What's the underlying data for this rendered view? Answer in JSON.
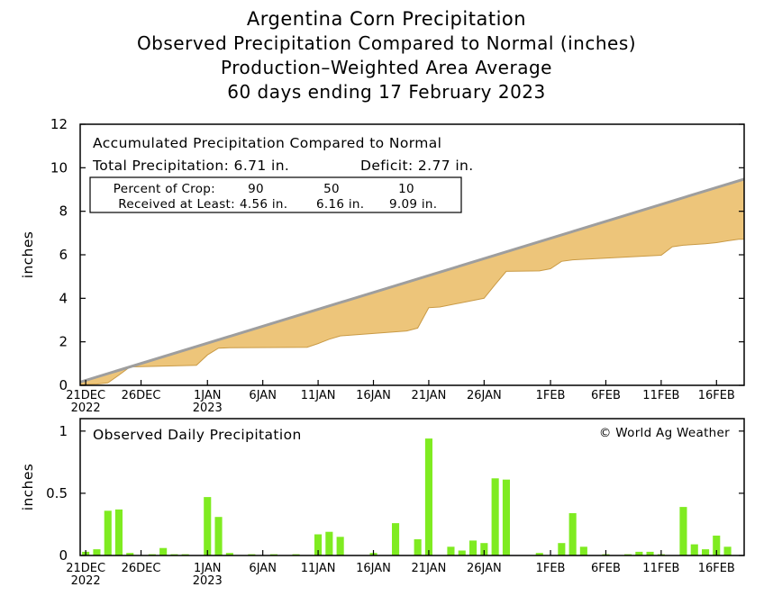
{
  "titles": [
    "Argentina Corn Precipitation",
    "Observed Precipitation Compared to Normal (inches)",
    "Production–Weighted Area Average",
    "60 days ending 17 February 2023"
  ],
  "colors": {
    "deficit_fill": "#EDC57A",
    "normal_line": "#9E9E9E",
    "bars": "#7FEB21"
  },
  "accumulated": {
    "heading": "Accumulated Precipitation Compared to Normal",
    "total_text": "Total Precipitation: 6.71 in.",
    "deficit_text": "Deficit: 2.77 in.",
    "crop_box": {
      "row1": [
        "Percent of Crop:",
        "90",
        "50",
        "10"
      ],
      "row2": [
        "Received at Least:",
        "4.56 in.",
        "6.16 in.",
        "9.09 in."
      ]
    }
  },
  "daily": {
    "heading": "Observed Daily Precipitation",
    "credit": "© World Ag Weather"
  },
  "axes": {
    "ylabel": "inches",
    "x_ticks": [
      {
        "day": 1,
        "label": "21DEC",
        "sub": "2022"
      },
      {
        "day": 6,
        "label": "26DEC",
        "sub": ""
      },
      {
        "day": 12,
        "label": "1JAN",
        "sub": "2023"
      },
      {
        "day": 17,
        "label": "6JAN",
        "sub": ""
      },
      {
        "day": 22,
        "label": "11JAN",
        "sub": ""
      },
      {
        "day": 27,
        "label": "16JAN",
        "sub": ""
      },
      {
        "day": 32,
        "label": "21JAN",
        "sub": ""
      },
      {
        "day": 37,
        "label": "26JAN",
        "sub": ""
      },
      {
        "day": 43,
        "label": "1FEB",
        "sub": ""
      },
      {
        "day": 48,
        "label": "6FEB",
        "sub": ""
      },
      {
        "day": 53,
        "label": "11FEB",
        "sub": ""
      },
      {
        "day": 58,
        "label": "16FEB",
        "sub": ""
      }
    ]
  },
  "chart_data": [
    {
      "type": "area",
      "title": "Accumulated Precipitation Compared to Normal",
      "ylabel": "inches",
      "ylim": [
        0,
        12
      ],
      "yticks": [
        0,
        2,
        4,
        6,
        8,
        10,
        12
      ],
      "xlim": [
        0.5,
        60.5
      ],
      "series": [
        {
          "name": "Normal",
          "style": "line",
          "x": [
            0.5,
            60.5
          ],
          "y": [
            0.15,
            9.48
          ]
        },
        {
          "name": "Observed",
          "style": "line",
          "x": [
            0.5,
            2,
            3,
            4,
            5,
            6,
            11,
            12,
            13,
            14,
            21,
            22,
            23,
            24,
            30,
            31,
            32,
            33,
            37,
            38,
            39,
            42,
            43,
            44,
            45,
            53,
            54,
            55,
            57,
            58,
            59,
            60,
            60.5
          ],
          "y": [
            0.03,
            0.06,
            0.11,
            0.47,
            0.85,
            0.86,
            0.92,
            1.4,
            1.71,
            1.73,
            1.75,
            1.92,
            2.12,
            2.27,
            2.5,
            2.63,
            3.57,
            3.6,
            4.0,
            4.63,
            5.24,
            5.26,
            5.36,
            5.7,
            5.77,
            5.98,
            6.37,
            6.44,
            6.51,
            6.56,
            6.64,
            6.71,
            6.71
          ]
        }
      ]
    },
    {
      "type": "bar",
      "title": "Observed Daily Precipitation",
      "ylabel": "inches",
      "ylim": [
        0,
        1.1
      ],
      "yticks": [
        0,
        0.5,
        1
      ],
      "ytick_labels": [
        "0",
        "0.5",
        "1"
      ],
      "days": [
        1,
        2,
        3,
        4,
        5,
        6,
        7,
        8,
        9,
        10,
        11,
        12,
        13,
        14,
        15,
        16,
        17,
        18,
        19,
        20,
        21,
        22,
        23,
        24,
        25,
        26,
        27,
        28,
        29,
        30,
        31,
        32,
        33,
        34,
        35,
        36,
        37,
        38,
        39,
        40,
        41,
        42,
        43,
        44,
        45,
        46,
        47,
        48,
        49,
        50,
        51,
        52,
        53,
        54,
        55,
        56,
        57,
        58,
        59,
        60
      ],
      "values": [
        0.03,
        0.05,
        0.36,
        0.37,
        0.02,
        0.0,
        0.01,
        0.06,
        0.01,
        0.01,
        0.0,
        0.47,
        0.31,
        0.02,
        0.0,
        0.01,
        0.0,
        0.01,
        0.0,
        0.01,
        0.0,
        0.17,
        0.19,
        0.15,
        0.0,
        0.0,
        0.02,
        0.0,
        0.26,
        0.0,
        0.13,
        0.94,
        0.0,
        0.07,
        0.04,
        0.12,
        0.1,
        0.62,
        0.61,
        0.0,
        0.0,
        0.02,
        0.0,
        0.1,
        0.34,
        0.07,
        0.0,
        0.01,
        0.0,
        0.01,
        0.03,
        0.03,
        0.01,
        0.0,
        0.39,
        0.09,
        0.05,
        0.16,
        0.07,
        0.0
      ]
    }
  ]
}
